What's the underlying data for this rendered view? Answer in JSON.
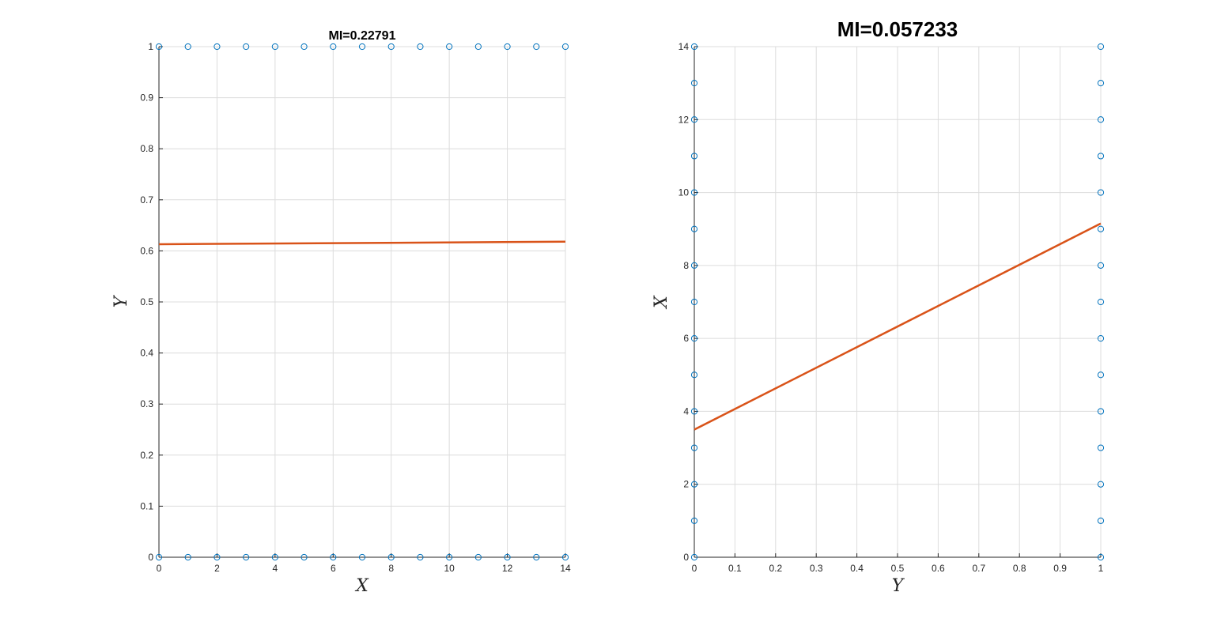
{
  "chart_data": [
    {
      "type": "scatter",
      "title": "MI=0.22791",
      "xlabel": "X",
      "ylabel": "Y",
      "xlim": [
        0,
        14
      ],
      "ylim": [
        0,
        1
      ],
      "xticks": [
        0,
        2,
        4,
        6,
        8,
        10,
        12,
        14
      ],
      "yticks": [
        0,
        0.1,
        0.2,
        0.3,
        0.4,
        0.5,
        0.6,
        0.7,
        0.8,
        0.9,
        1
      ],
      "grid": true,
      "series": [
        {
          "mode": "markers",
          "marker": "circle",
          "color": "#0072BD",
          "x": [
            0,
            1,
            2,
            3,
            4,
            5,
            6,
            7,
            8,
            9,
            10,
            11,
            12,
            13,
            14,
            0,
            1,
            2,
            3,
            4,
            5,
            6,
            7,
            8,
            9,
            10,
            11,
            12,
            13,
            14
          ],
          "y": [
            0,
            0,
            0,
            0,
            0,
            0,
            0,
            0,
            0,
            0,
            0,
            0,
            0,
            0,
            0,
            1,
            1,
            1,
            1,
            1,
            1,
            1,
            1,
            1,
            1,
            1,
            1,
            1,
            1,
            1
          ]
        },
        {
          "mode": "line",
          "color": "#D95319",
          "x": [
            0,
            14
          ],
          "y": [
            0.613,
            0.618
          ]
        }
      ]
    },
    {
      "type": "scatter",
      "title": "MI=0.057233",
      "xlabel": "Y",
      "ylabel": "X",
      "xlim": [
        0,
        1
      ],
      "ylim": [
        0,
        14
      ],
      "xticks": [
        0,
        0.1,
        0.2,
        0.3,
        0.4,
        0.5,
        0.6,
        0.7,
        0.8,
        0.9,
        1
      ],
      "yticks": [
        0,
        2,
        4,
        6,
        8,
        10,
        12,
        14
      ],
      "grid": true,
      "series": [
        {
          "mode": "markers",
          "marker": "circle",
          "color": "#0072BD",
          "x": [
            0,
            0,
            0,
            0,
            0,
            0,
            0,
            0,
            0,
            0,
            0,
            0,
            0,
            0,
            0,
            1,
            1,
            1,
            1,
            1,
            1,
            1,
            1,
            1,
            1,
            1,
            1,
            1,
            1,
            1
          ],
          "y": [
            0,
            1,
            2,
            3,
            4,
            5,
            6,
            7,
            8,
            9,
            10,
            11,
            12,
            13,
            14,
            0,
            1,
            2,
            3,
            4,
            5,
            6,
            7,
            8,
            9,
            10,
            11,
            12,
            13,
            14
          ]
        },
        {
          "mode": "line",
          "color": "#D95319",
          "x": [
            0,
            1
          ],
          "y": [
            3.5,
            9.15
          ]
        }
      ]
    }
  ]
}
